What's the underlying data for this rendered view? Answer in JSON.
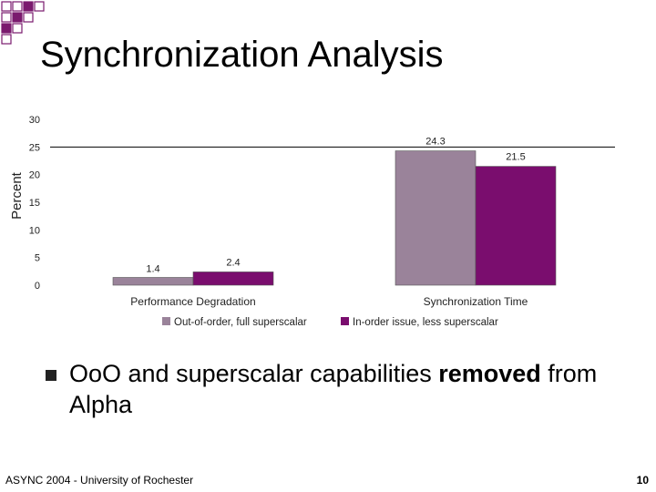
{
  "slide": {
    "title": "Synchronization Analysis",
    "bullet": {
      "part1": "OoO and superscalar capabilities ",
      "part2": "removed",
      "part3": " from Alpha"
    },
    "footer": "ASYNC 2004 - University of Rochester",
    "page_number": "10",
    "colors": {
      "decoration": "#7a1a6e",
      "series1": "#9a839a",
      "series2": "#7a0d6e"
    }
  },
  "chart_data": {
    "type": "bar",
    "categories": [
      "Performance Degradation",
      "Synchronization Time"
    ],
    "series": [
      {
        "name": "Out-of-order, full superscalar",
        "values": [
          1.4,
          24.3
        ],
        "labels": [
          "1.4",
          "24.3"
        ]
      },
      {
        "name": "In-order issue, less superscalar",
        "values": [
          2.4,
          21.5
        ],
        "labels": [
          "2.4",
          "21.5"
        ]
      }
    ],
    "ylabel": "Percent",
    "ylim": [
      0,
      30
    ],
    "yticks": [
      "0",
      "5",
      "10",
      "15",
      "20",
      "25",
      "30"
    ],
    "grid": false,
    "legend": "bottom"
  }
}
